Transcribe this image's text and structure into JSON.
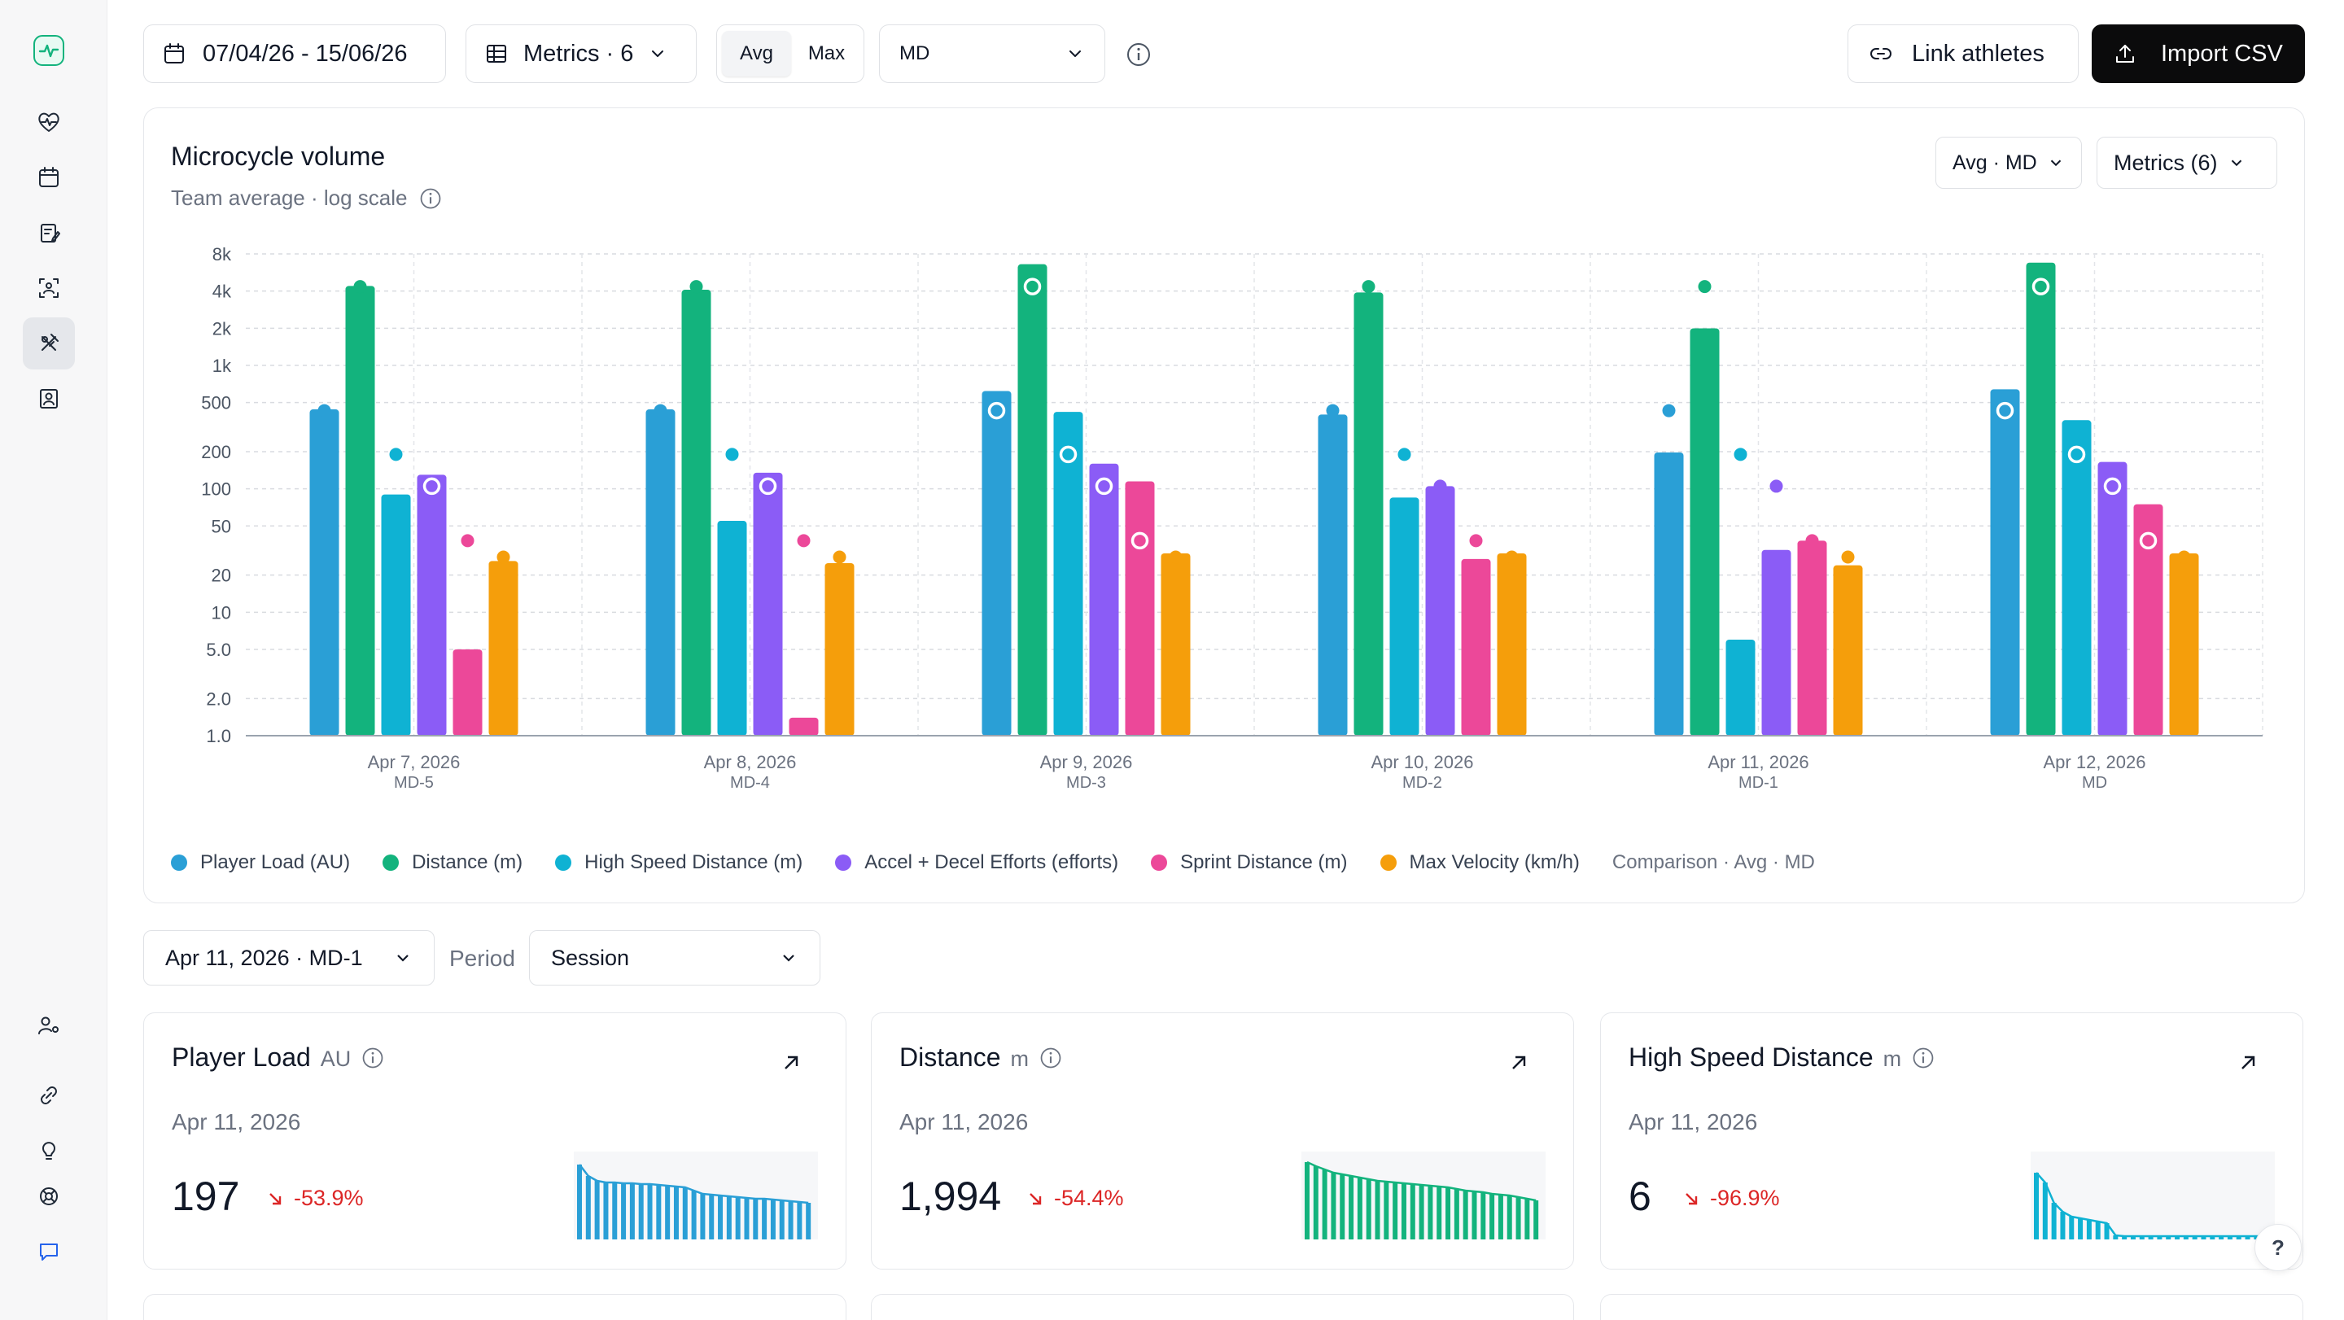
{
  "toolbar": {
    "date_range": "07/04/26 - 15/06/26",
    "metrics_label": "Metrics · 6",
    "avg_label": "Avg",
    "max_label": "Max",
    "md_value": "MD",
    "link_label": "Link athletes",
    "import_label": "Import CSV"
  },
  "sidebar": {
    "items": [
      "activity-logo",
      "wellness",
      "calendar",
      "sessions",
      "scanner",
      "drills",
      "roster",
      "user-settings",
      "links",
      "ideas",
      "support",
      "chat"
    ]
  },
  "chart_card": {
    "title": "Microcycle volume",
    "subtitle": "Team average · log scale",
    "mode_button": "Avg · MD",
    "metrics_button": "Metrics (6)",
    "comparison_note": "Comparison · Avg · MD"
  },
  "chart_data": {
    "type": "bar",
    "log_scale": true,
    "ylim": [
      1,
      8000
    ],
    "yticks": [
      {
        "v": 8000,
        "label": "8k"
      },
      {
        "v": 4000,
        "label": "4k"
      },
      {
        "v": 2000,
        "label": "2k"
      },
      {
        "v": 1000,
        "label": "1k"
      },
      {
        "v": 500,
        "label": "500"
      },
      {
        "v": 200,
        "label": "200"
      },
      {
        "v": 100,
        "label": "100"
      },
      {
        "v": 50,
        "label": "50"
      },
      {
        "v": 20,
        "label": "20"
      },
      {
        "v": 10,
        "label": "10"
      },
      {
        "v": 5,
        "label": "5.0"
      },
      {
        "v": 2,
        "label": "2.0"
      },
      {
        "v": 1,
        "label": "1.0"
      }
    ],
    "categories": [
      {
        "date": "Apr 7, 2026",
        "md": "MD-5"
      },
      {
        "date": "Apr 8, 2026",
        "md": "MD-4"
      },
      {
        "date": "Apr 9, 2026",
        "md": "MD-3"
      },
      {
        "date": "Apr 10, 2026",
        "md": "MD-2"
      },
      {
        "date": "Apr 11, 2026",
        "md": "MD-1"
      },
      {
        "date": "Apr 12, 2026",
        "md": "MD"
      }
    ],
    "series": [
      {
        "name": "Player Load (AU)",
        "color": "#2a9fd6",
        "values": [
          440,
          440,
          620,
          400,
          197,
          640
        ],
        "comparison": [
          430,
          430,
          430,
          430,
          430,
          430
        ]
      },
      {
        "name": "Distance (m)",
        "color": "#13b37d",
        "values": [
          4400,
          4100,
          6600,
          3900,
          1994,
          6800
        ],
        "comparison": [
          4350,
          4350,
          4350,
          4350,
          4350,
          4350
        ]
      },
      {
        "name": "High Speed Distance (m)",
        "color": "#0fb2d3",
        "values": [
          90,
          55,
          420,
          85,
          6,
          360
        ],
        "comparison": [
          190,
          190,
          190,
          190,
          190,
          190
        ]
      },
      {
        "name": "Accel + Decel Efforts (efforts)",
        "color": "#8b5cf6",
        "values": [
          130,
          135,
          160,
          105,
          32,
          165
        ],
        "comparison": [
          105,
          105,
          105,
          105,
          105,
          105
        ]
      },
      {
        "name": "Sprint Distance (m)",
        "color": "#ec4899",
        "values": [
          5,
          1.4,
          115,
          27,
          38,
          75
        ],
        "comparison": [
          38,
          38,
          38,
          38,
          38,
          38
        ]
      },
      {
        "name": "Max Velocity (km/h)",
        "color": "#f59e0b",
        "values": [
          26,
          25,
          30,
          30,
          24,
          30
        ],
        "comparison": [
          28,
          28,
          28,
          28,
          28,
          28
        ]
      }
    ]
  },
  "filters": {
    "day_value": "Apr 11, 2026 · MD-1",
    "period_label": "Period",
    "period_value": "Session"
  },
  "kpis": [
    {
      "title": "Player Load",
      "unit": "AU",
      "date": "Apr 11, 2026",
      "value": "197",
      "change": "-53.9%",
      "color": "#2a9fd6",
      "spark": [
        0.92,
        0.78,
        0.72,
        0.7,
        0.7,
        0.69,
        0.69,
        0.68,
        0.68,
        0.67,
        0.66,
        0.65,
        0.64,
        0.6,
        0.56,
        0.55,
        0.54,
        0.53,
        0.52,
        0.51,
        0.5,
        0.5,
        0.49,
        0.48,
        0.47,
        0.46,
        0.45
      ],
      "spark_type": "bars"
    },
    {
      "title": "Distance",
      "unit": "m",
      "date": "Apr 11, 2026",
      "value": "1,994",
      "change": "-54.4%",
      "color": "#13b37d",
      "spark": [
        0.95,
        0.9,
        0.86,
        0.82,
        0.8,
        0.78,
        0.76,
        0.74,
        0.72,
        0.71,
        0.7,
        0.69,
        0.68,
        0.67,
        0.66,
        0.65,
        0.64,
        0.62,
        0.6,
        0.59,
        0.58,
        0.56,
        0.55,
        0.54,
        0.52,
        0.5,
        0.48
      ],
      "spark_type": "bars"
    },
    {
      "title": "High Speed Distance",
      "unit": "m",
      "date": "Apr 11, 2026",
      "value": "6",
      "change": "-96.9%",
      "color": "#0fb2d3",
      "spark": [
        0.82,
        0.7,
        0.45,
        0.34,
        0.28,
        0.26,
        0.24,
        0.22,
        0.2,
        0.05,
        0.04,
        0.04,
        0.04,
        0.04,
        0.04,
        0.04,
        0.04,
        0.04,
        0.04,
        0.04,
        0.04,
        0.04,
        0.04,
        0.04,
        0.04,
        0.04,
        0.04
      ],
      "spark_type": "bars"
    }
  ],
  "help_label": "?"
}
